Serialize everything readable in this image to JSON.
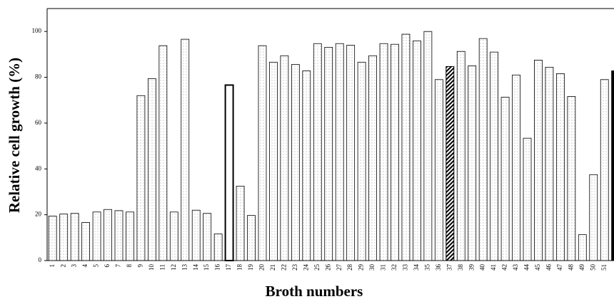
{
  "chart_data": {
    "type": "bar",
    "x_label": "Broth numbers",
    "y_label": "Relative cell growth (%)",
    "categories": [
      "1",
      "2",
      "3",
      "4",
      "5",
      "6",
      "7",
      "8",
      "9",
      "10",
      "11",
      "12",
      "13",
      "14",
      "15",
      "16",
      "17",
      "18",
      "19",
      "20",
      "21",
      "22",
      "23",
      "24",
      "25",
      "26",
      "27",
      "28",
      "29",
      "30",
      "31",
      "32",
      "33",
      "34",
      "35",
      "36",
      "37",
      "38",
      "39",
      "40",
      "41",
      "42",
      "43",
      "44",
      "45",
      "46",
      "47",
      "48",
      "49",
      "50",
      "51",
      null
    ],
    "values": [
      19.4,
      20.3,
      20.6,
      16.6,
      21.2,
      22.3,
      21.8,
      21.2,
      72,
      79.4,
      93.8,
      21.2,
      96.6,
      22,
      20.6,
      11.6,
      76.6,
      32.5,
      19.7,
      93.8,
      86.6,
      89.4,
      85.6,
      82.8,
      94.7,
      93.1,
      94.7,
      94,
      86.6,
      89.4,
      94.7,
      94.4,
      98.8,
      95.9,
      100,
      79,
      84.7,
      91.3,
      85,
      96.9,
      91,
      71.3,
      81,
      53.4,
      87.5,
      84.4,
      81.6,
      71.6,
      11.3,
      37.5,
      79,
      82.8
    ],
    "bar_styles": [
      "dotted",
      "dotted",
      "dotted",
      "dotted",
      "dotted",
      "dotted",
      "dotted",
      "dotted",
      "dotted",
      "dotted",
      "dotted",
      "dotted",
      "dotted",
      "dotted",
      "dotted",
      "dotted",
      "open",
      "dotted",
      "dotted",
      "dotted",
      "dotted",
      "dotted",
      "dotted",
      "dotted",
      "dotted",
      "dotted",
      "dotted",
      "dotted",
      "dotted",
      "dotted",
      "dotted",
      "dotted",
      "dotted",
      "dotted",
      "dotted",
      "dotted",
      "hatched",
      "dotted",
      "dotted",
      "dotted",
      "dotted",
      "dotted",
      "dotted",
      "dotted",
      "dotted",
      "dotted",
      "dotted",
      "dotted",
      "dotted",
      "dotted",
      "dotted",
      "solid"
    ],
    "ylim": [
      0,
      110
    ],
    "yticks": [
      0,
      20,
      40,
      60,
      80,
      100
    ]
  }
}
